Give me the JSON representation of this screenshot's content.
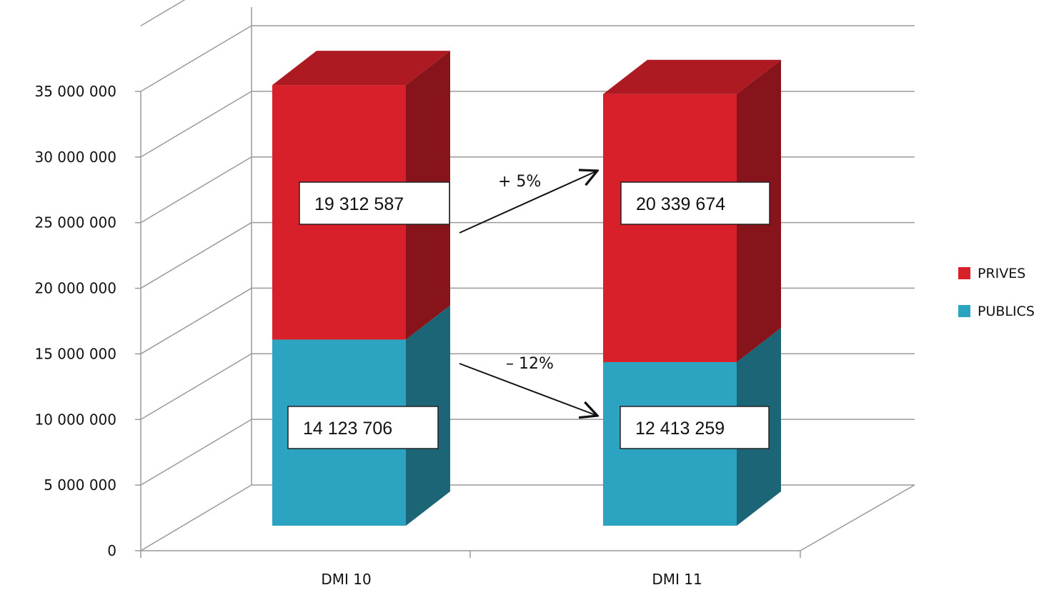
{
  "chart_data": {
    "type": "bar",
    "stacked": true,
    "three_d": true,
    "categories": [
      "DMI 10",
      "DMI 11"
    ],
    "series": [
      {
        "name": "PUBLICS",
        "values": [
          14123706,
          12413259
        ],
        "color": "#2CA3C0"
      },
      {
        "name": "PRIVES",
        "values": [
          19312587,
          20339674
        ],
        "color": "#D8202A"
      }
    ],
    "data_labels": {
      "PUBLICS": [
        "14 123 706",
        "12 413 259"
      ],
      "PRIVES": [
        "19 312 587",
        "20 339 674"
      ]
    },
    "yticks": [
      "0",
      "5 000 000",
      "10 000 000",
      "15 000 000",
      "20 000 000",
      "25 000 000",
      "30 000 000",
      "35 000 000"
    ],
    "ylim": [
      0,
      35000000
    ],
    "grid": true,
    "legend": {
      "position": "right",
      "order": [
        "PRIVES",
        "PUBLICS"
      ]
    },
    "annotations": [
      {
        "text": "+ 5%",
        "series": "PRIVES"
      },
      {
        "text": "– 12%",
        "series": "PUBLICS"
      }
    ]
  }
}
